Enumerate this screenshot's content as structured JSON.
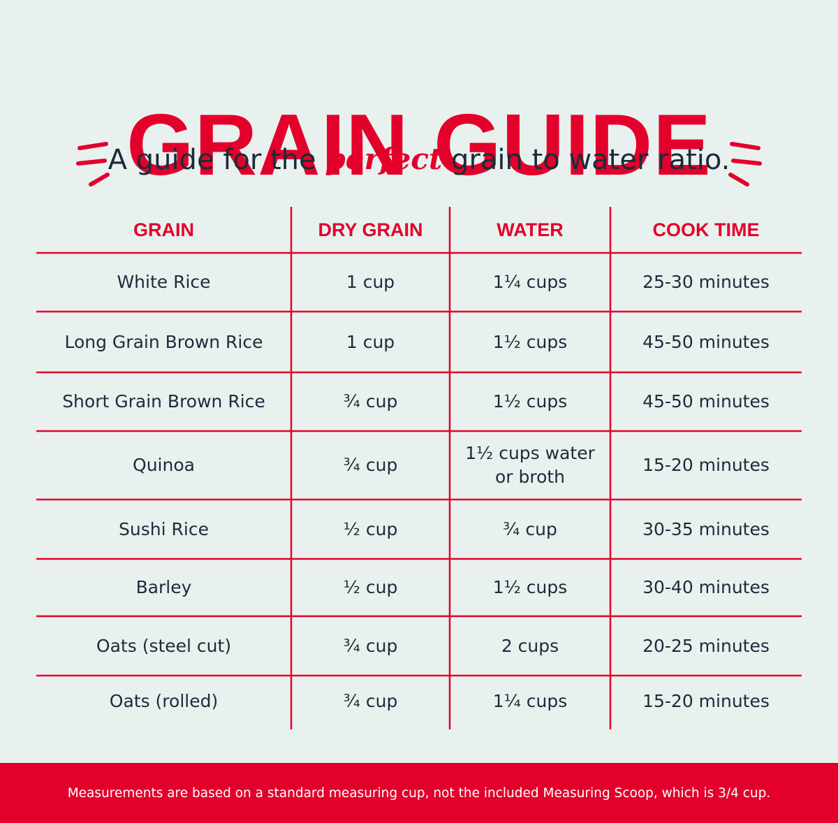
{
  "title": "GRAIN  GUIDE",
  "subtitle": {
    "before": "A guide for the ",
    "emphasis": "perfect",
    "after": " grain to water ratio."
  },
  "table": {
    "headers": [
      "GRAIN",
      "DRY GRAIN",
      "WATER",
      "COOK TIME"
    ],
    "rows": [
      [
        "White Rice",
        "1 cup",
        "1¼ cups",
        "25-30 minutes"
      ],
      [
        "Long Grain Brown Rice",
        "1 cup",
        "1½ cups",
        "45-50 minutes"
      ],
      [
        "Short Grain Brown Rice",
        "¾ cup",
        "1½ cups",
        "45-50 minutes"
      ],
      [
        "Quinoa",
        "¾ cup",
        "1½ cups water\nor broth",
        "15-20 minutes"
      ],
      [
        "Sushi Rice",
        "½ cup",
        "¾ cup",
        "30-35 minutes"
      ],
      [
        "Barley",
        "½ cup",
        "1½ cups",
        "30-40 minutes"
      ],
      [
        "Oats (steel cut)",
        "¾ cup",
        "2 cups",
        "20-25 minutes"
      ],
      [
        "Oats (rolled)",
        "¾ cup",
        "1¼ cups",
        "15-20 minutes"
      ]
    ]
  },
  "footer": "Measurements are based on a standard measuring cup, not the included Measuring Scoop, which is 3/4 cup.",
  "colors": {
    "accent": "#e3002b",
    "text": "#1a2c3a",
    "background": "#e9f1ef"
  }
}
